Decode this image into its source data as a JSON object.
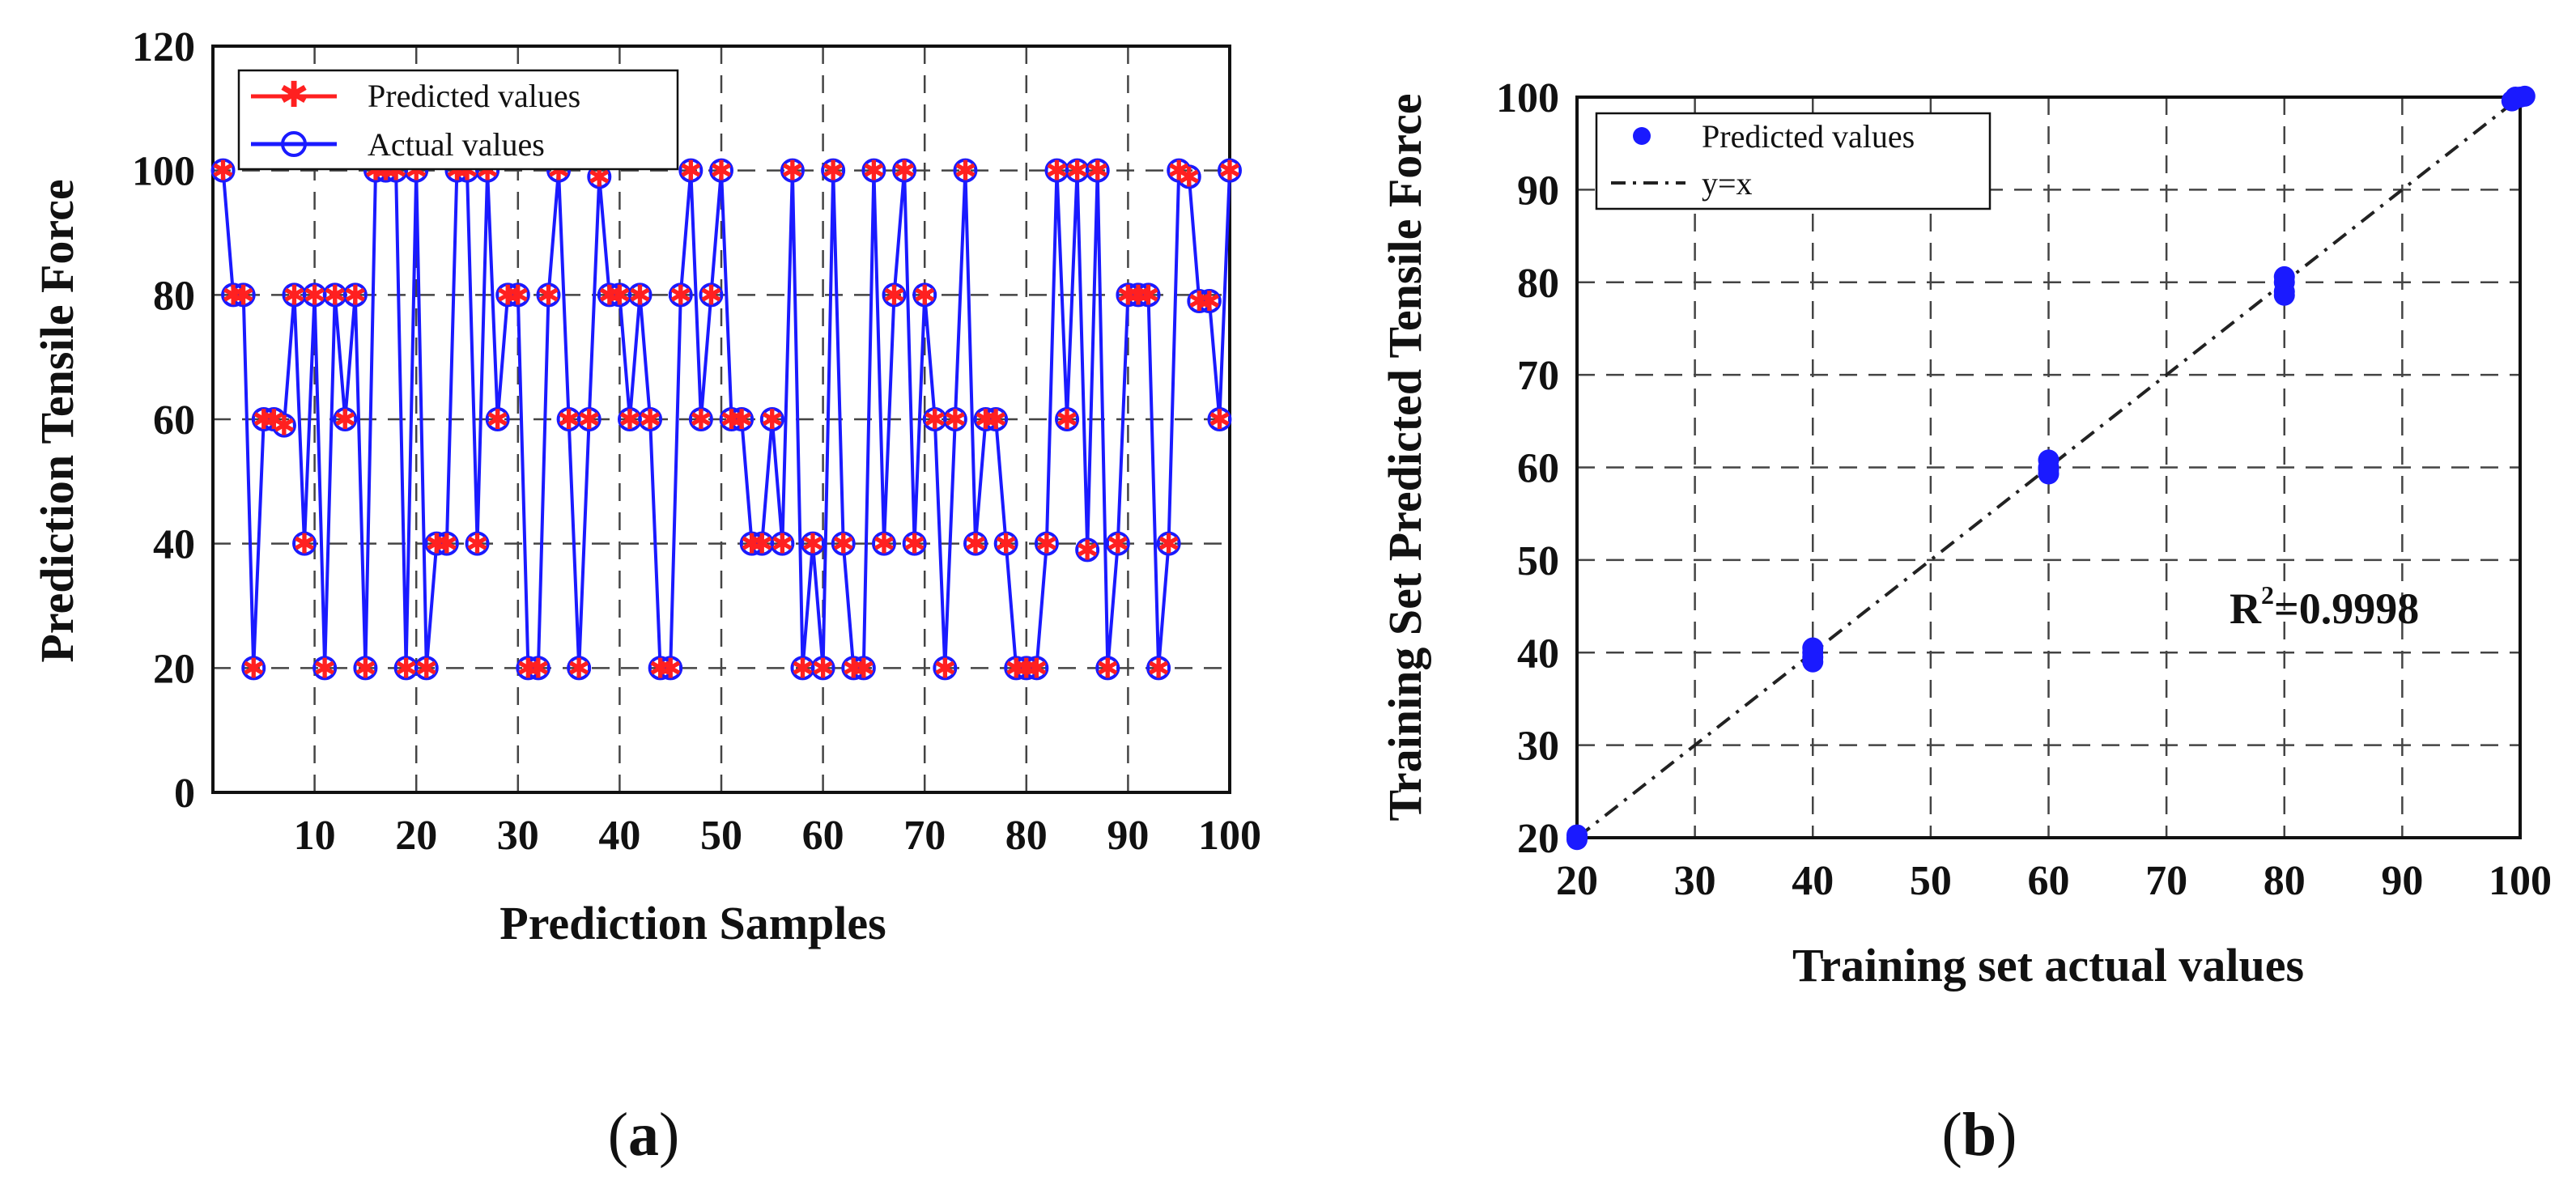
{
  "chart_data": [
    {
      "type": "line",
      "panel_label": "(a)",
      "xlabel": "Prediction Samples",
      "ylabel": "Prediction Tensile Force",
      "xlim": [
        0,
        100
      ],
      "ylim": [
        0,
        120
      ],
      "xticks": [
        "10",
        "20",
        "30",
        "40",
        "50",
        "60",
        "70",
        "80",
        "90",
        "100"
      ],
      "yticks": [
        "0",
        "20",
        "40",
        "60",
        "80",
        "100",
        "120"
      ],
      "grid": true,
      "legend": [
        "Predicted values",
        "Actual values"
      ],
      "x": [
        1,
        2,
        3,
        4,
        5,
        6,
        7,
        8,
        9,
        10,
        11,
        12,
        13,
        14,
        15,
        16,
        17,
        18,
        19,
        20,
        21,
        22,
        23,
        24,
        25,
        26,
        27,
        28,
        29,
        30,
        31,
        32,
        33,
        34,
        35,
        36,
        37,
        38,
        39,
        40,
        41,
        42,
        43,
        44,
        45,
        46,
        47,
        48,
        49,
        50,
        51,
        52,
        53,
        54,
        55,
        56,
        57,
        58,
        59,
        60,
        61,
        62,
        63,
        64,
        65,
        66,
        67,
        68,
        69,
        70,
        71,
        72,
        73,
        74,
        75,
        76,
        77,
        78,
        79,
        80,
        81,
        82,
        83,
        84,
        85,
        86,
        87,
        88,
        89,
        90,
        91,
        92,
        93,
        94,
        95,
        96,
        97,
        98,
        99,
        100
      ],
      "series": [
        {
          "name": "Actual values",
          "color": "#1a1aff",
          "marker": "circle",
          "values": [
            100,
            80,
            80,
            20,
            60,
            60,
            59,
            80,
            40,
            80,
            20,
            80,
            60,
            80,
            20,
            100,
            100,
            100,
            20,
            100,
            20,
            40,
            40,
            100,
            100,
            40,
            100,
            60,
            80,
            80,
            20,
            20,
            80,
            100,
            60,
            20,
            60,
            99,
            80,
            80,
            60,
            80,
            60,
            20,
            20,
            80,
            100,
            60,
            80,
            100,
            60,
            60,
            40,
            40,
            60,
            40,
            100,
            20,
            40,
            20,
            100,
            40,
            20,
            20,
            100,
            40,
            80,
            100,
            40,
            80,
            60,
            20,
            60,
            100,
            40,
            60,
            60,
            40,
            20,
            20,
            20,
            40,
            100,
            60,
            100,
            39,
            100,
            20,
            40,
            80,
            80,
            80,
            20,
            40,
            100,
            99,
            79,
            79,
            60,
            100
          ]
        },
        {
          "name": "Predicted values",
          "color": "#ff2020",
          "marker": "star",
          "values": [
            100,
            80,
            80,
            20,
            60,
            60,
            59,
            80,
            40,
            80,
            20,
            80,
            60,
            80,
            20,
            100,
            100,
            100,
            20,
            100,
            20,
            40,
            40,
            100,
            100,
            40,
            100,
            60,
            80,
            80,
            20,
            20,
            80,
            100,
            60,
            20,
            60,
            99,
            80,
            80,
            60,
            80,
            60,
            20,
            20,
            80,
            100,
            60,
            80,
            100,
            60,
            60,
            40,
            40,
            60,
            40,
            100,
            20,
            40,
            20,
            100,
            40,
            20,
            20,
            100,
            40,
            80,
            100,
            40,
            80,
            60,
            20,
            60,
            100,
            40,
            60,
            60,
            40,
            20,
            20,
            20,
            40,
            100,
            60,
            100,
            39,
            100,
            20,
            40,
            80,
            80,
            80,
            20,
            40,
            100,
            99,
            79,
            79,
            60,
            100
          ]
        }
      ]
    },
    {
      "type": "scatter",
      "panel_label": "(b)",
      "xlabel": "Training set actual values",
      "ylabel": "Training Set Predicted Tensile Force",
      "xlim": [
        20,
        100
      ],
      "ylim": [
        20,
        100
      ],
      "xticks": [
        "20",
        "30",
        "40",
        "50",
        "60",
        "70",
        "80",
        "90",
        "100"
      ],
      "yticks": [
        "20",
        "30",
        "40",
        "50",
        "60",
        "70",
        "80",
        "90",
        "100"
      ],
      "grid": true,
      "legend": [
        "Predicted values",
        "y=x"
      ],
      "annotation": "R",
      "annotation_sup": "2",
      "annotation_value": "=0.9998",
      "series": [
        {
          "name": "Predicted values",
          "color": "#1a1aff",
          "points": [
            [
              20,
              20
            ],
            [
              20,
              20.3
            ],
            [
              20,
              19.8
            ],
            [
              40,
              40
            ],
            [
              40,
              39.5
            ],
            [
              40,
              40.5
            ],
            [
              40,
              39
            ],
            [
              60,
              60
            ],
            [
              60,
              59.3
            ],
            [
              60,
              60.8
            ],
            [
              60,
              59.8
            ],
            [
              80,
              80
            ],
            [
              80,
              79
            ],
            [
              80,
              78.6
            ],
            [
              80,
              80.6
            ],
            [
              100,
              100
            ],
            [
              99.6,
              100
            ],
            [
              100.4,
              100.1
            ],
            [
              99.3,
              99.6
            ]
          ]
        },
        {
          "name": "y=x",
          "color": "#222222",
          "line": [
            [
              20,
              20
            ],
            [
              100,
              100
            ]
          ]
        }
      ]
    }
  ]
}
